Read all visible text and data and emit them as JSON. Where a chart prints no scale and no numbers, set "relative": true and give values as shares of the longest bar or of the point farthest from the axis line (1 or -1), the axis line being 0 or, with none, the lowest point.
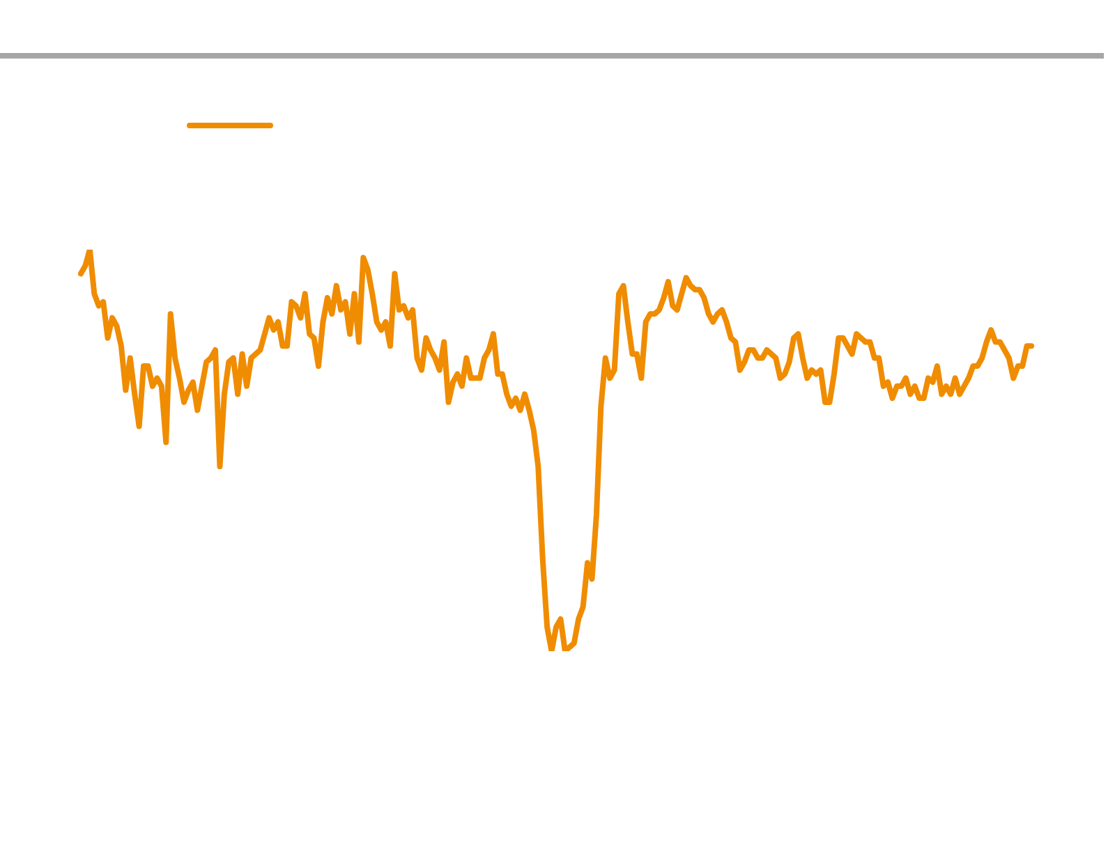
{
  "chart_data": {
    "type": "line",
    "relative": true,
    "marker": "none",
    "line_style": "solid",
    "categories": [
      null,
      null,
      null,
      null,
      null,
      null,
      null,
      null,
      null,
      null,
      null,
      null,
      null,
      null,
      null,
      null,
      null,
      null,
      null,
      null,
      null,
      null,
      null,
      null,
      null,
      null,
      null,
      null,
      null,
      null,
      null,
      null,
      null,
      null,
      null,
      null,
      null,
      null,
      null,
      null,
      null,
      null,
      null,
      null,
      null,
      null,
      null,
      null,
      null,
      null,
      null,
      null,
      null,
      null,
      null,
      null,
      null,
      null,
      null,
      null,
      null,
      null,
      null,
      null,
      null,
      null,
      null,
      null,
      null,
      null,
      null,
      null,
      null,
      null,
      null,
      null,
      null,
      null,
      null,
      null,
      null,
      null,
      null,
      null,
      null,
      null,
      null,
      null,
      null,
      null,
      null,
      null,
      null,
      null,
      null,
      null,
      null,
      null,
      null,
      null,
      null,
      null,
      null,
      null,
      null,
      null,
      null,
      null,
      null,
      null,
      null,
      null,
      null,
      null,
      null,
      null,
      null,
      null,
      null,
      null,
      null,
      null,
      null,
      null,
      null,
      null,
      null,
      null,
      null,
      null,
      null,
      null,
      null,
      null,
      null,
      null,
      null,
      null,
      null,
      null,
      null,
      null,
      null,
      null,
      null,
      null,
      null,
      null,
      null,
      null,
      null,
      null,
      null,
      null,
      null,
      null,
      null,
      null,
      null,
      null,
      null,
      null,
      null,
      null,
      null,
      null,
      null,
      null,
      null,
      null,
      null,
      null,
      null,
      null,
      null,
      null,
      null,
      null,
      null,
      null,
      null,
      null,
      null,
      null,
      null,
      null,
      null,
      null,
      null,
      null,
      null,
      null,
      null,
      null,
      null,
      null,
      null,
      null,
      null,
      null,
      null,
      null,
      null,
      null,
      null,
      null,
      null,
      null,
      null,
      null,
      null,
      null,
      null
    ],
    "series": [
      {
        "color": "#f08c00",
        "values": [
          0.94,
          0.96,
          1,
          0.89,
          0.86,
          0.87,
          0.78,
          0.83,
          0.81,
          0.76,
          0.65,
          0.73,
          0.64,
          0.56,
          0.71,
          0.71,
          0.66,
          0.68,
          0.66,
          0.52,
          0.84,
          0.73,
          0.68,
          0.62,
          0.65,
          0.67,
          0.6,
          0.66,
          0.72,
          0.73,
          0.75,
          0.46,
          0.64,
          0.72,
          0.73,
          0.64,
          0.74,
          0.66,
          0.73,
          0.74,
          0.75,
          0.79,
          0.83,
          0.8,
          0.82,
          0.76,
          0.76,
          0.87,
          0.86,
          0.83,
          0.89,
          0.79,
          0.78,
          0.71,
          0.82,
          0.88,
          0.84,
          0.91,
          0.85,
          0.87,
          0.79,
          0.89,
          0.77,
          0.98,
          0.95,
          0.89,
          0.82,
          0.8,
          0.82,
          0.76,
          0.94,
          0.85,
          0.86,
          0.83,
          0.85,
          0.73,
          0.7,
          0.78,
          0.75,
          0.73,
          0.7,
          0.77,
          0.62,
          0.67,
          0.69,
          0.66,
          0.73,
          0.68,
          0.68,
          0.68,
          0.73,
          0.75,
          0.79,
          0.69,
          0.69,
          0.64,
          0.61,
          0.63,
          0.6,
          0.64,
          0.6,
          0.55,
          0.46,
          0.23,
          0.06,
          0,
          0.06,
          0.08,
          0,
          0.01,
          0.02,
          0.08,
          0.11,
          0.22,
          0.18,
          0.34,
          0.61,
          0.73,
          0.68,
          0.7,
          0.89,
          0.91,
          0.82,
          0.74,
          0.74,
          0.68,
          0.82,
          0.84,
          0.84,
          0.85,
          0.88,
          0.92,
          0.86,
          0.85,
          0.89,
          0.93,
          0.91,
          0.9,
          0.9,
          0.88,
          0.84,
          0.82,
          0.84,
          0.85,
          0.82,
          0.78,
          0.77,
          0.7,
          0.72,
          0.75,
          0.75,
          0.73,
          0.73,
          0.75,
          0.74,
          0.73,
          0.68,
          0.69,
          0.72,
          0.78,
          0.79,
          0.73,
          0.68,
          0.7,
          0.69,
          0.7,
          0.62,
          0.62,
          0.69,
          0.78,
          0.78,
          0.76,
          0.74,
          0.79,
          0.78,
          0.77,
          0.77,
          0.73,
          0.73,
          0.66,
          0.67,
          0.63,
          0.66,
          0.66,
          0.68,
          0.64,
          0.66,
          0.63,
          0.63,
          0.68,
          0.67,
          0.71,
          0.64,
          0.66,
          0.64,
          0.68,
          0.64,
          0.66,
          0.68,
          0.71,
          0.71,
          0.73,
          0.77,
          0.8,
          0.77,
          0.77,
          0.75,
          0.73,
          0.68,
          0.71,
          0.71,
          0.76,
          0.76
        ]
      }
    ]
  }
}
